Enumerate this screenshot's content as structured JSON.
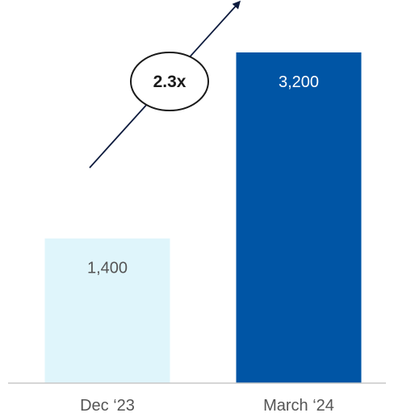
{
  "chart_data": {
    "type": "bar",
    "categories": [
      "Dec ‘23",
      "March ‘24"
    ],
    "values": [
      1400,
      3200
    ],
    "value_labels": [
      "1,400",
      "3,200"
    ],
    "colors": [
      "#dff5fb",
      "#0055a5"
    ],
    "label_colors": [
      "#555555",
      "#ffffff"
    ],
    "ylim": [
      0,
      3200
    ],
    "grid": false,
    "annotation": {
      "text": "2.3x",
      "type": "growth-arrow"
    }
  }
}
